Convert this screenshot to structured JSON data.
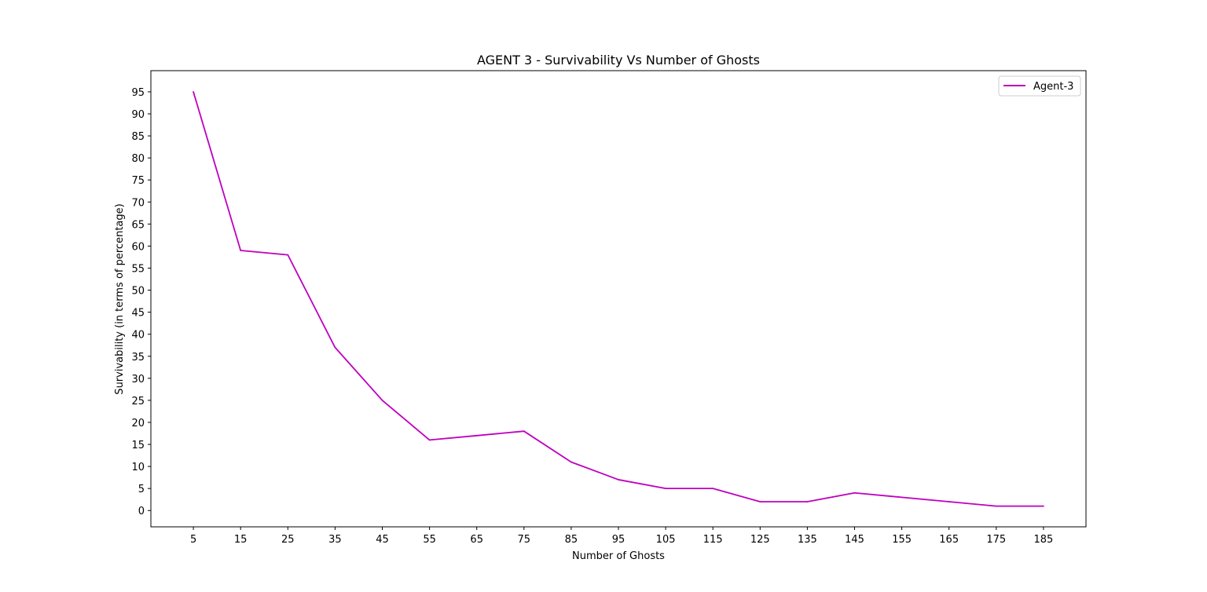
{
  "chart_data": {
    "type": "line",
    "title": "AGENT 3 - Survivability Vs Number of Ghosts",
    "xlabel": "Number of Ghosts",
    "ylabel": "Survivability (in terms of percentage)",
    "x": [
      5,
      15,
      25,
      35,
      45,
      55,
      65,
      75,
      85,
      95,
      105,
      115,
      125,
      135,
      145,
      155,
      165,
      175,
      185
    ],
    "xticks": [
      "5",
      "15",
      "25",
      "35",
      "45",
      "55",
      "65",
      "75",
      "85",
      "95",
      "105",
      "115",
      "125",
      "135",
      "145",
      "155",
      "165",
      "175",
      "185"
    ],
    "yticks": [
      "0",
      "5",
      "10",
      "15",
      "20",
      "25",
      "30",
      "35",
      "40",
      "45",
      "50",
      "55",
      "60",
      "65",
      "70",
      "75",
      "80",
      "85",
      "90",
      "95"
    ],
    "xlim": [
      -4.0,
      194.0
    ],
    "ylim": [
      -3.7,
      99.8
    ],
    "grid": false,
    "legend_position": "upper-right",
    "series": [
      {
        "name": "Agent-3",
        "color": "#bf00bf",
        "values": [
          95,
          59,
          58,
          37,
          25,
          16,
          17,
          18,
          11,
          7,
          5,
          5,
          2,
          2,
          4,
          3,
          2,
          1,
          1
        ]
      }
    ]
  }
}
